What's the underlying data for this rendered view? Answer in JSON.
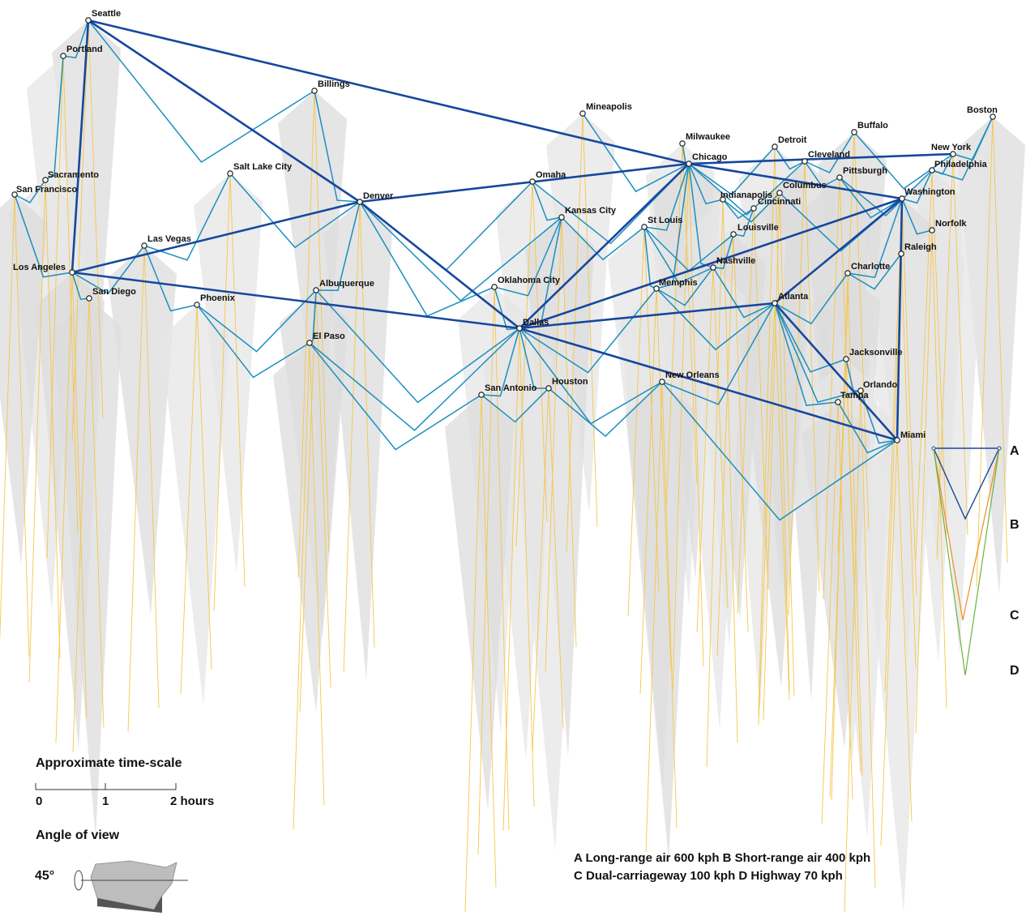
{
  "cities": [
    {
      "id": "seattle",
      "name": "Seattle"
    },
    {
      "id": "portland",
      "name": "Portland"
    },
    {
      "id": "billings",
      "name": "Billings"
    },
    {
      "id": "mineapolis",
      "name": "Mineapolis"
    },
    {
      "id": "boston",
      "name": "Boston"
    },
    {
      "id": "milwaukee",
      "name": "Milwaukee"
    },
    {
      "id": "chicago",
      "name": "Chicago"
    },
    {
      "id": "detroit",
      "name": "Detroit"
    },
    {
      "id": "buffalo",
      "name": "Buffalo"
    },
    {
      "id": "newyork",
      "name": "New York"
    },
    {
      "id": "cleveland",
      "name": "Cleveland"
    },
    {
      "id": "philadelphia",
      "name": "Philadelphia"
    },
    {
      "id": "pittsburgh",
      "name": "Pittsburgh"
    },
    {
      "id": "sacramento",
      "name": "Sacramento"
    },
    {
      "id": "sanfrancisco",
      "name": "San Francisco"
    },
    {
      "id": "saltlake",
      "name": "Salt Lake City"
    },
    {
      "id": "denver",
      "name": "Denver"
    },
    {
      "id": "omaha",
      "name": "Omaha"
    },
    {
      "id": "columbus",
      "name": "Columbus"
    },
    {
      "id": "indianapolis",
      "name": "Indianapolis"
    },
    {
      "id": "washington",
      "name": "Washington"
    },
    {
      "id": "cincinnati",
      "name": "Cincinnati"
    },
    {
      "id": "kansascity",
      "name": "Kansas City"
    },
    {
      "id": "stlouis",
      "name": "St Louis"
    },
    {
      "id": "louisville",
      "name": "Louisville"
    },
    {
      "id": "norfolk",
      "name": "Norfolk"
    },
    {
      "id": "lasvegas",
      "name": "Las Vegas"
    },
    {
      "id": "raleigh",
      "name": "Raleigh"
    },
    {
      "id": "losangeles",
      "name": "Los Angeles"
    },
    {
      "id": "nashville",
      "name": "Nashville"
    },
    {
      "id": "charlotte",
      "name": "Charlotte"
    },
    {
      "id": "oklahomacity",
      "name": "Oklahoma City"
    },
    {
      "id": "albuquerque",
      "name": "Albuquerque"
    },
    {
      "id": "memphis",
      "name": "Memphis"
    },
    {
      "id": "sandiego",
      "name": "San Diego"
    },
    {
      "id": "phoenix",
      "name": "Phoenix"
    },
    {
      "id": "atlanta",
      "name": "Atlanta"
    },
    {
      "id": "dallas",
      "name": "Dallas"
    },
    {
      "id": "elpaso",
      "name": "El Paso"
    },
    {
      "id": "jacksonville",
      "name": "Jacksonville"
    },
    {
      "id": "neworleans",
      "name": "New Orleans"
    },
    {
      "id": "houston",
      "name": "Houston"
    },
    {
      "id": "sanantonio",
      "name": "San Antonio"
    },
    {
      "id": "orlando",
      "name": "Orlando"
    },
    {
      "id": "tampa",
      "name": "Tampa"
    },
    {
      "id": "miami",
      "name": "Miami"
    }
  ],
  "links": {
    "long_range_air": [
      [
        "seattle",
        "chicago"
      ],
      [
        "seattle",
        "losangeles"
      ],
      [
        "seattle",
        "denver"
      ],
      [
        "losangeles",
        "denver"
      ],
      [
        "losangeles",
        "dallas"
      ],
      [
        "denver",
        "chicago"
      ],
      [
        "denver",
        "dallas"
      ],
      [
        "chicago",
        "dallas"
      ],
      [
        "chicago",
        "newyork"
      ],
      [
        "chicago",
        "washington"
      ],
      [
        "dallas",
        "washington"
      ],
      [
        "dallas",
        "atlanta"
      ],
      [
        "dallas",
        "miami"
      ],
      [
        "atlanta",
        "miami"
      ],
      [
        "washington",
        "miami"
      ],
      [
        "washington",
        "atlanta"
      ]
    ],
    "short_range_air": [
      [
        "seattle",
        "portland"
      ],
      [
        "seattle",
        "billings"
      ],
      [
        "portland",
        "sacramento"
      ],
      [
        "sacramento",
        "sanfrancisco"
      ],
      [
        "sanfrancisco",
        "losangeles"
      ],
      [
        "losangeles",
        "sandiego"
      ],
      [
        "losangeles",
        "lasvegas"
      ],
      [
        "lasvegas",
        "phoenix"
      ],
      [
        "lasvegas",
        "saltlake"
      ],
      [
        "saltlake",
        "denver"
      ],
      [
        "billings",
        "denver"
      ],
      [
        "denver",
        "albuquerque"
      ],
      [
        "albuquerque",
        "elpaso"
      ],
      [
        "albuquerque",
        "phoenix"
      ],
      [
        "elpaso",
        "dallas"
      ],
      [
        "phoenix",
        "elpaso"
      ],
      [
        "denver",
        "omaha"
      ],
      [
        "denver",
        "kansascity"
      ],
      [
        "omaha",
        "chicago"
      ],
      [
        "omaha",
        "kansascity"
      ],
      [
        "kansascity",
        "dallas"
      ],
      [
        "kansascity",
        "stlouis"
      ],
      [
        "oklahomacity",
        "dallas"
      ],
      [
        "dallas",
        "sanantonio"
      ],
      [
        "dallas",
        "houston"
      ],
      [
        "houston",
        "neworleans"
      ],
      [
        "sanantonio",
        "houston"
      ],
      [
        "dallas",
        "neworleans"
      ],
      [
        "dallas",
        "memphis"
      ],
      [
        "memphis",
        "nashville"
      ],
      [
        "nashville",
        "atlanta"
      ],
      [
        "atlanta",
        "neworleans"
      ],
      [
        "atlanta",
        "charlotte"
      ],
      [
        "atlanta",
        "jacksonville"
      ],
      [
        "atlanta",
        "tampa"
      ],
      [
        "atlanta",
        "orlando"
      ],
      [
        "jacksonville",
        "orlando"
      ],
      [
        "orlando",
        "miami"
      ],
      [
        "tampa",
        "miami"
      ],
      [
        "charlotte",
        "raleigh"
      ],
      [
        "raleigh",
        "washington"
      ],
      [
        "washington",
        "norfolk"
      ],
      [
        "washington",
        "philadelphia"
      ],
      [
        "philadelphia",
        "newyork"
      ],
      [
        "newyork",
        "boston"
      ],
      [
        "chicago",
        "milwaukee"
      ],
      [
        "chicago",
        "mineapolis"
      ],
      [
        "chicago",
        "detroit"
      ],
      [
        "chicago",
        "cleveland"
      ],
      [
        "chicago",
        "indianapolis"
      ],
      [
        "chicago",
        "stlouis"
      ],
      [
        "detroit",
        "cleveland"
      ],
      [
        "cleveland",
        "buffalo"
      ],
      [
        "cleveland",
        "pittsburgh"
      ],
      [
        "pittsburgh",
        "philadelphia"
      ],
      [
        "pittsburgh",
        "washington"
      ],
      [
        "columbus",
        "washington"
      ],
      [
        "columbus",
        "indianapolis"
      ],
      [
        "indianapolis",
        "cincinnati"
      ],
      [
        "cincinnati",
        "louisville"
      ],
      [
        "louisville",
        "nashville"
      ],
      [
        "stlouis",
        "memphis"
      ],
      [
        "stlouis",
        "louisville"
      ],
      [
        "buffalo",
        "newyork"
      ],
      [
        "boston",
        "philadelphia"
      ],
      [
        "chicago",
        "memphis"
      ],
      [
        "chicago",
        "nashville"
      ],
      [
        "washington",
        "charlotte"
      ],
      [
        "neworleans",
        "miami"
      ],
      [
        "stlouis",
        "nashville"
      ],
      [
        "memphis",
        "atlanta"
      ],
      [
        "albuquerque",
        "dallas"
      ],
      [
        "oklahomacity",
        "kansascity"
      ],
      [
        "oklahomacity",
        "denver"
      ],
      [
        "elpaso",
        "sanantonio"
      ]
    ]
  },
  "legend": {
    "letters": [
      "A",
      "B",
      "C",
      "D"
    ],
    "colors": {
      "A": "#16479e",
      "B": "#1b8fc0",
      "C": "#f28a1e",
      "D": "#6cb33f"
    },
    "modes_line1": "A Long-range air 600 kph B Short-range air 400 kph",
    "modes_line2": "C Dual-carriageway 100 kph D Highway 70 kph"
  },
  "scale": {
    "title": "Approximate time-scale",
    "ticks": [
      "0",
      "1",
      "2 hours"
    ]
  },
  "view": {
    "title": "Angle of view",
    "angle": "45°"
  }
}
